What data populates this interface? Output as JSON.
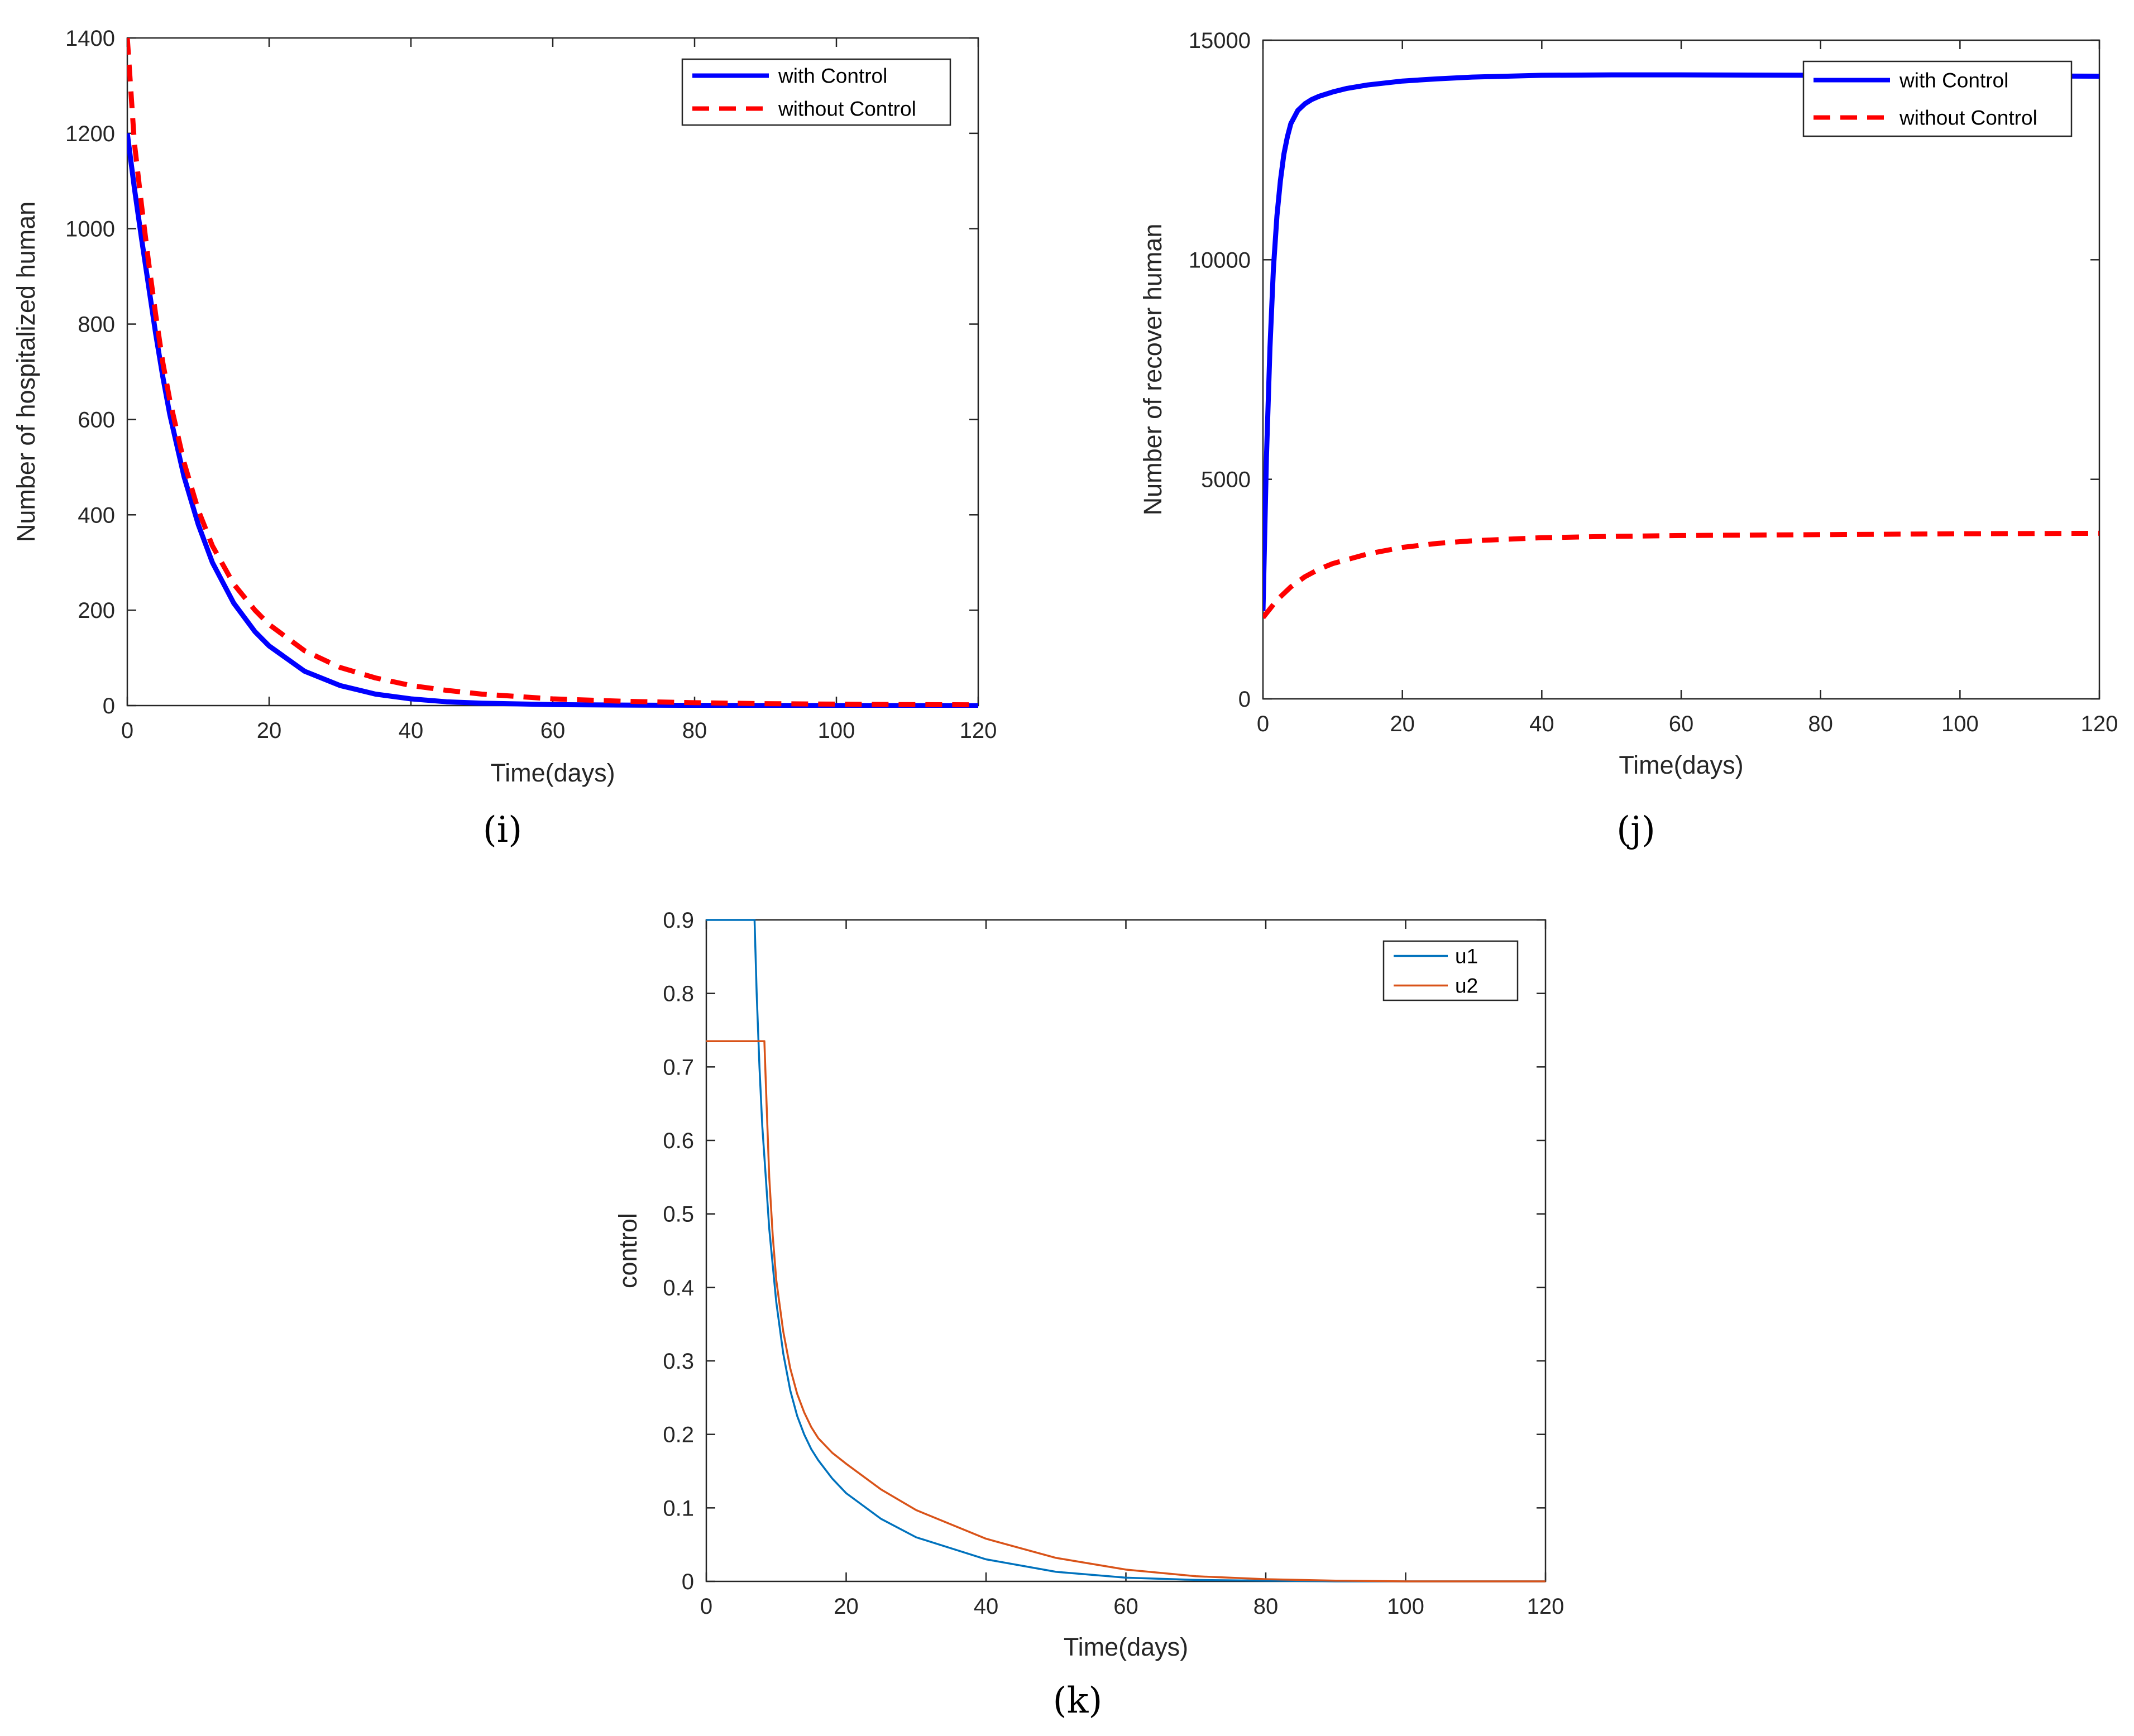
{
  "figure_captions": [
    "(i)",
    "(j)",
    "(k)"
  ],
  "chart_data": [
    {
      "id": "i",
      "type": "line",
      "caption": "(i)",
      "xlabel": "Time(days)",
      "ylabel": "Number of hospitalized human",
      "xlim": [
        0,
        120
      ],
      "ylim": [
        0,
        1400
      ],
      "xticks": [
        0,
        20,
        40,
        60,
        80,
        100,
        120
      ],
      "yticks": [
        0,
        200,
        400,
        600,
        800,
        1000,
        1200,
        1400
      ],
      "legend_position": "top-right",
      "series": [
        {
          "name": "with Control",
          "color": "#0000ff",
          "style": "solid",
          "x": [
            0,
            1,
            2,
            3,
            4,
            5,
            6,
            8,
            10,
            12,
            15,
            18,
            20,
            25,
            30,
            35,
            40,
            45,
            50,
            60,
            70,
            80,
            90,
            100,
            110,
            120
          ],
          "y": [
            1200,
            1085,
            980,
            880,
            780,
            690,
            610,
            480,
            380,
            300,
            215,
            155,
            125,
            72,
            42,
            24,
            14,
            8,
            5,
            2,
            1,
            0.5,
            0.3,
            0.2,
            0.1,
            0
          ]
        },
        {
          "name": "without Control",
          "color": "#ff0000",
          "style": "dashed",
          "x": [
            0,
            1,
            2,
            3,
            4,
            5,
            6,
            8,
            10,
            12,
            15,
            18,
            20,
            25,
            30,
            35,
            40,
            45,
            50,
            60,
            70,
            80,
            90,
            100,
            110,
            120
          ],
          "y": [
            1400,
            1180,
            1050,
            930,
            820,
            720,
            640,
            510,
            410,
            335,
            255,
            200,
            170,
            115,
            80,
            58,
            42,
            32,
            24,
            14,
            9,
            6,
            4,
            3,
            2,
            1.5
          ]
        }
      ]
    },
    {
      "id": "j",
      "type": "line",
      "caption": "(j)",
      "xlabel": "Time(days)",
      "ylabel": "Number of recover human",
      "xlim": [
        0,
        120
      ],
      "ylim": [
        0,
        15000
      ],
      "xticks": [
        0,
        20,
        40,
        60,
        80,
        100,
        120
      ],
      "yticks": [
        0,
        5000,
        10000,
        15000
      ],
      "legend_position": "top-right",
      "series": [
        {
          "name": "with Control",
          "color": "#0000ff",
          "style": "solid",
          "x": [
            0,
            0.5,
            1,
            1.5,
            2,
            2.5,
            3,
            3.5,
            4,
            5,
            6,
            7,
            8,
            10,
            12,
            15,
            20,
            25,
            30,
            40,
            50,
            60,
            80,
            100,
            120
          ],
          "y": [
            2000,
            5500,
            8000,
            9800,
            11000,
            11800,
            12400,
            12800,
            13100,
            13400,
            13550,
            13650,
            13720,
            13820,
            13900,
            13980,
            14070,
            14120,
            14160,
            14200,
            14210,
            14210,
            14200,
            14190,
            14180
          ]
        },
        {
          "name": "without Control",
          "color": "#ff0000",
          "style": "dashed",
          "x": [
            0,
            2,
            4,
            6,
            8,
            10,
            15,
            20,
            25,
            30,
            40,
            50,
            60,
            80,
            100,
            120
          ],
          "y": [
            1850,
            2250,
            2550,
            2780,
            2950,
            3080,
            3300,
            3450,
            3540,
            3600,
            3670,
            3700,
            3720,
            3740,
            3760,
            3770
          ]
        }
      ]
    },
    {
      "id": "k",
      "type": "line",
      "caption": "(k)",
      "xlabel": "Time(days)",
      "ylabel": "control",
      "xlim": [
        0,
        120
      ],
      "ylim": [
        0,
        0.9
      ],
      "xticks": [
        0,
        20,
        40,
        60,
        80,
        100,
        120
      ],
      "yticks": [
        0,
        0.1,
        0.2,
        0.3,
        0.4,
        0.5,
        0.6,
        0.7,
        0.8,
        0.9
      ],
      "legend_position": "top-right",
      "series": [
        {
          "name": "u1",
          "color": "#0072bd",
          "style": "solid",
          "x": [
            0,
            6.9,
            7.2,
            7.6,
            8,
            8.5,
            9,
            10,
            11,
            12,
            13,
            14,
            15,
            16,
            18,
            20,
            25,
            30,
            40,
            50,
            60,
            70,
            80,
            90,
            100,
            110,
            120
          ],
          "y": [
            0.9,
            0.9,
            0.8,
            0.7,
            0.62,
            0.55,
            0.48,
            0.38,
            0.31,
            0.26,
            0.225,
            0.2,
            0.18,
            0.165,
            0.14,
            0.12,
            0.085,
            0.06,
            0.03,
            0.013,
            0.005,
            0.002,
            0.001,
            0,
            0,
            0,
            0
          ]
        },
        {
          "name": "u2",
          "color": "#d95319",
          "style": "solid",
          "x": [
            0,
            8.3,
            8.5,
            9,
            9.5,
            10,
            11,
            12,
            13,
            14,
            15,
            16,
            18,
            20,
            25,
            30,
            40,
            50,
            60,
            70,
            80,
            90,
            100,
            110,
            120
          ],
          "y": [
            0.735,
            0.735,
            0.68,
            0.55,
            0.47,
            0.41,
            0.34,
            0.29,
            0.255,
            0.23,
            0.21,
            0.195,
            0.175,
            0.16,
            0.125,
            0.097,
            0.058,
            0.032,
            0.016,
            0.007,
            0.003,
            0.001,
            0,
            0,
            0
          ]
        }
      ]
    }
  ]
}
